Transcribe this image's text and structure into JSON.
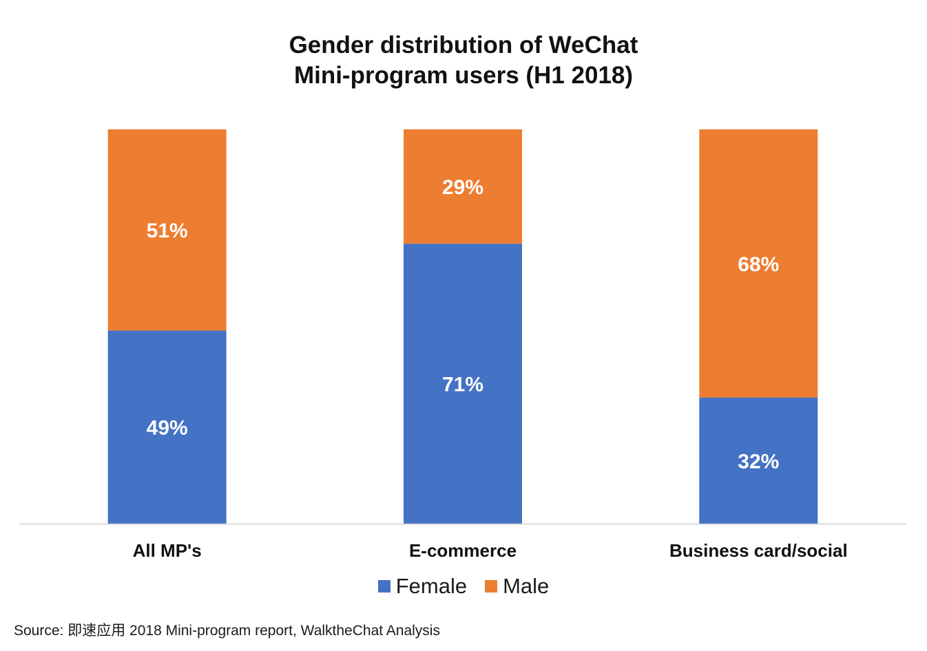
{
  "chart_data": {
    "type": "bar",
    "stacked": true,
    "percent_stacked": true,
    "title_lines": [
      "Gender distribution of WeChat",
      "Mini-program users (H1 2018)"
    ],
    "categories": [
      "All MP's",
      "E-commerce",
      "Business card/social"
    ],
    "series": [
      {
        "name": "Female",
        "values": [
          49,
          71,
          32
        ],
        "labels": [
          "49%",
          "71%",
          "32%"
        ],
        "color": "#4472C4"
      },
      {
        "name": "Male",
        "values": [
          51,
          29,
          68
        ],
        "labels": [
          "51%",
          "29%",
          "68%"
        ],
        "color": "#ED7D31"
      }
    ],
    "ylim": [
      0,
      100
    ],
    "grid": false,
    "legend_position": "bottom"
  },
  "source": "Source: 即速应用 2018 Mini-program report, WalktheChat Analysis"
}
